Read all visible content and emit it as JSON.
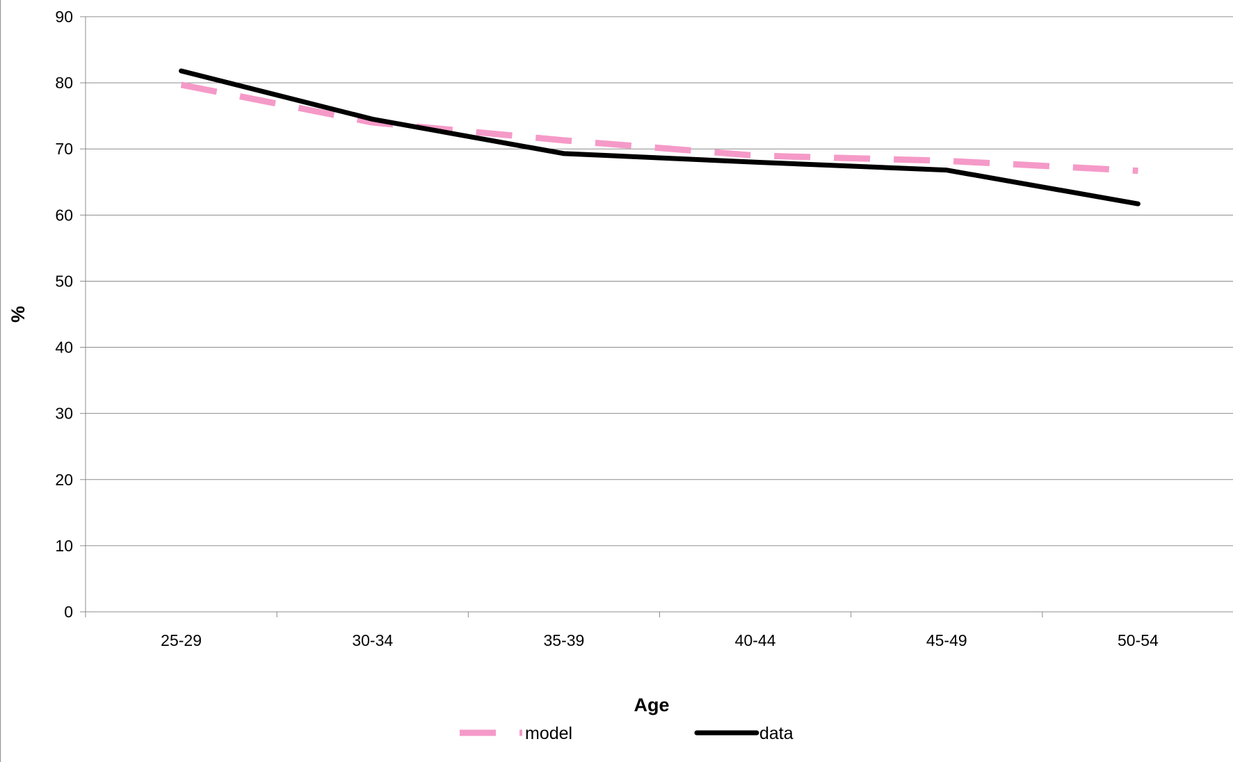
{
  "chart_data": {
    "type": "line",
    "categories": [
      "25-29",
      "30-34",
      "35-39",
      "40-44",
      "45-49",
      "50-54"
    ],
    "series": [
      {
        "name": "model",
        "values": [
          79.7,
          74.0,
          71.3,
          69.0,
          68.2,
          66.7
        ],
        "color": "#f59ac8",
        "style": "dashed"
      },
      {
        "name": "data",
        "values": [
          81.8,
          74.5,
          69.3,
          68.0,
          66.8,
          61.7
        ],
        "color": "#000000",
        "style": "solid"
      }
    ],
    "title": "",
    "xlabel": "Age",
    "ylabel": "%",
    "ylim": [
      0,
      90
    ],
    "yticks": [
      0,
      10,
      20,
      30,
      40,
      50,
      60,
      70,
      80,
      90
    ],
    "grid": "horizontal",
    "legend_position": "bottom"
  }
}
